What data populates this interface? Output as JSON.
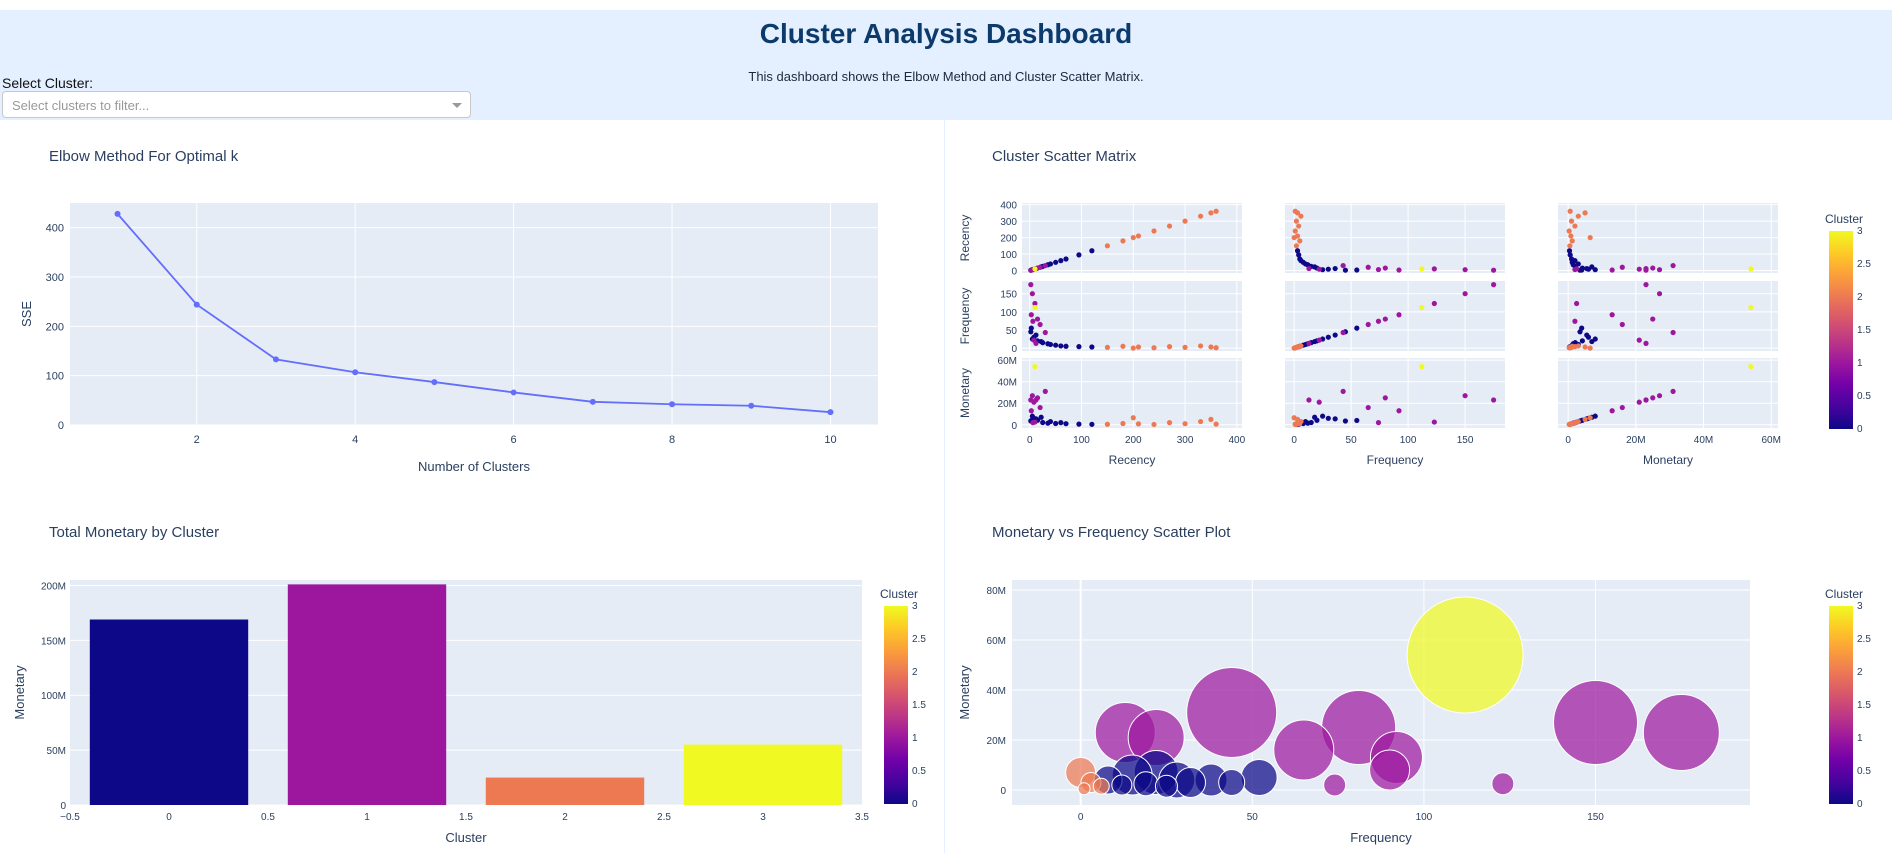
{
  "header": {
    "title": "Cluster Analysis Dashboard",
    "subtitle": "This dashboard shows the Elbow Method and Cluster Scatter Matrix."
  },
  "filter": {
    "label": "Select Cluster:",
    "placeholder": "Select clusters to filter..."
  },
  "colors": {
    "header_bg": "#e4efff",
    "plot_bg": "#e5ecf6",
    "line": "#636efa",
    "cluster_0": "#0d0887",
    "cluster_1": "#9c179e",
    "cluster_2": "#ed7953",
    "cluster_3": "#f0f921"
  },
  "chart_data": [
    {
      "type": "line",
      "title": "Elbow Method For Optimal k",
      "xlabel": "Number of Clusters",
      "ylabel": "SSE",
      "x": [
        1,
        2,
        3,
        4,
        5,
        6,
        7,
        8,
        9,
        10
      ],
      "y": [
        428,
        244,
        133,
        107,
        87,
        66,
        47,
        42,
        39,
        26
      ],
      "xticks": [
        2,
        4,
        6,
        8,
        10
      ],
      "yticks": [
        0,
        100,
        200,
        300,
        400
      ],
      "xlim": [
        0.4,
        10.6
      ],
      "ylim": [
        0,
        450
      ]
    },
    {
      "type": "scatter",
      "title": "Cluster Scatter Matrix",
      "dimensions": [
        "Recency",
        "Frequency",
        "Monetary"
      ],
      "tick_labels": {
        "Recency": [
          "0",
          "100",
          "200",
          "300",
          "400"
        ],
        "Frequency": [
          "0",
          "50",
          "100",
          "150"
        ],
        "Frequency_y": [
          "0",
          "50",
          "100",
          "150"
        ],
        "Monetary": [
          "0",
          "20M",
          "40M",
          "60M"
        ],
        "Recency_y": [
          "0",
          "100",
          "200",
          "300",
          "400"
        ]
      },
      "colorbar": {
        "title": "Cluster",
        "ticks": [
          "0",
          "0.5",
          "1",
          "1.5",
          "2",
          "2.5",
          "3"
        ]
      },
      "points": [
        {
          "cluster": 0,
          "Recency": 2,
          "Frequency": 45,
          "Monetary": 3.5
        },
        {
          "cluster": 0,
          "Recency": 8,
          "Frequency": 30,
          "Monetary": 6.0
        },
        {
          "cluster": 0,
          "Recency": 15,
          "Frequency": 20,
          "Monetary": 4.2
        },
        {
          "cluster": 0,
          "Recency": 25,
          "Frequency": 15,
          "Monetary": 2.1
        },
        {
          "cluster": 0,
          "Recency": 35,
          "Frequency": 12,
          "Monetary": 1.5
        },
        {
          "cluster": 0,
          "Recency": 50,
          "Frequency": 8,
          "Monetary": 1.2
        },
        {
          "cluster": 0,
          "Recency": 70,
          "Frequency": 5,
          "Monetary": 1.0
        },
        {
          "cluster": 0,
          "Recency": 95,
          "Frequency": 4,
          "Monetary": 0.6
        },
        {
          "cluster": 0,
          "Recency": 120,
          "Frequency": 3,
          "Monetary": 0.4
        },
        {
          "cluster": 0,
          "Recency": 5,
          "Frequency": 25,
          "Monetary": 8.0
        },
        {
          "cluster": 0,
          "Recency": 12,
          "Frequency": 36,
          "Monetary": 5.5
        },
        {
          "cluster": 0,
          "Recency": 40,
          "Frequency": 10,
          "Monetary": 3.0
        },
        {
          "cluster": 0,
          "Recency": 60,
          "Frequency": 6,
          "Monetary": 2.0
        },
        {
          "cluster": 0,
          "Recency": 22,
          "Frequency": 18,
          "Monetary": 7.0
        },
        {
          "cluster": 0,
          "Recency": 3,
          "Frequency": 55,
          "Monetary": 4.0
        },
        {
          "cluster": 1,
          "Recency": 2,
          "Frequency": 175,
          "Monetary": 23
        },
        {
          "cluster": 1,
          "Recency": 5,
          "Frequency": 150,
          "Monetary": 27
        },
        {
          "cluster": 1,
          "Recency": 10,
          "Frequency": 123,
          "Monetary": 2.5
        },
        {
          "cluster": 1,
          "Recency": 3,
          "Frequency": 92,
          "Monetary": 13
        },
        {
          "cluster": 1,
          "Recency": 15,
          "Frequency": 80,
          "Monetary": 25
        },
        {
          "cluster": 1,
          "Recency": 20,
          "Frequency": 65,
          "Monetary": 16
        },
        {
          "cluster": 1,
          "Recency": 30,
          "Frequency": 43,
          "Monetary": 31
        },
        {
          "cluster": 1,
          "Recency": 8,
          "Frequency": 22,
          "Monetary": 21
        },
        {
          "cluster": 1,
          "Recency": 12,
          "Frequency": 13,
          "Monetary": 23
        },
        {
          "cluster": 1,
          "Recency": 6,
          "Frequency": 74,
          "Monetary": 2.0
        },
        {
          "cluster": 2,
          "Recency": 150,
          "Frequency": 2,
          "Monetary": 0.5
        },
        {
          "cluster": 2,
          "Recency": 180,
          "Frequency": 5,
          "Monetary": 1.2
        },
        {
          "cluster": 2,
          "Recency": 210,
          "Frequency": 3,
          "Monetary": 0.8
        },
        {
          "cluster": 2,
          "Recency": 240,
          "Frequency": 1,
          "Monetary": 0.3
        },
        {
          "cluster": 2,
          "Recency": 270,
          "Frequency": 4,
          "Monetary": 2.0
        },
        {
          "cluster": 2,
          "Recency": 300,
          "Frequency": 2,
          "Monetary": 1.0
        },
        {
          "cluster": 2,
          "Recency": 330,
          "Frequency": 6,
          "Monetary": 3.0
        },
        {
          "cluster": 2,
          "Recency": 350,
          "Frequency": 3,
          "Monetary": 5.0
        },
        {
          "cluster": 2,
          "Recency": 360,
          "Frequency": 1,
          "Monetary": 0.6
        },
        {
          "cluster": 2,
          "Recency": 200,
          "Frequency": 0,
          "Monetary": 6.5
        },
        {
          "cluster": 3,
          "Recency": 10,
          "Frequency": 112,
          "Monetary": 54
        }
      ]
    },
    {
      "type": "bar",
      "title": "Total Monetary by Cluster",
      "xlabel": "Cluster",
      "ylabel": "Monetary",
      "categories": [
        0,
        1,
        2,
        3
      ],
      "values": [
        169,
        201,
        25,
        55
      ],
      "xticks": [
        "−0.5",
        "0",
        "0.5",
        "1",
        "1.5",
        "2",
        "2.5",
        "3",
        "3.5"
      ],
      "yticks": [
        "0",
        "50M",
        "100M",
        "150M",
        "200M"
      ],
      "xlim": [
        -0.5,
        3.5
      ],
      "ylim": [
        0,
        205
      ],
      "colorbar": {
        "title": "Cluster",
        "ticks": [
          "0",
          "0.5",
          "1",
          "1.5",
          "2",
          "2.5",
          "3"
        ]
      }
    },
    {
      "type": "scatter",
      "title": "Monetary vs Frequency Scatter Plot",
      "xlabel": "Frequency",
      "ylabel": "Monetary",
      "xticks": [
        "0",
        "50",
        "100",
        "150"
      ],
      "yticks": [
        "0",
        "20M",
        "40M",
        "60M",
        "80M"
      ],
      "xlim": [
        -20,
        195
      ],
      "ylim": [
        -6,
        84
      ],
      "colorbar": {
        "title": "Cluster",
        "ticks": [
          "0",
          "0.5",
          "1",
          "1.5",
          "2",
          "2.5",
          "3"
        ]
      },
      "points": [
        {
          "cluster": 2,
          "x": 0,
          "y": 7,
          "r": 15
        },
        {
          "cluster": 2,
          "x": 3,
          "y": 3,
          "r": 10
        },
        {
          "cluster": 2,
          "x": 6,
          "y": 1.5,
          "r": 8
        },
        {
          "cluster": 2,
          "x": 1,
          "y": 0.5,
          "r": 6
        },
        {
          "cluster": 0,
          "x": 8,
          "y": 4,
          "r": 14
        },
        {
          "cluster": 0,
          "x": 15,
          "y": 6,
          "r": 20
        },
        {
          "cluster": 0,
          "x": 22,
          "y": 7,
          "r": 22
        },
        {
          "cluster": 0,
          "x": 28,
          "y": 4,
          "r": 18
        },
        {
          "cluster": 0,
          "x": 32,
          "y": 3,
          "r": 15
        },
        {
          "cluster": 0,
          "x": 38,
          "y": 4,
          "r": 16
        },
        {
          "cluster": 0,
          "x": 44,
          "y": 3,
          "r": 13
        },
        {
          "cluster": 0,
          "x": 52,
          "y": 5,
          "r": 18
        },
        {
          "cluster": 0,
          "x": 12,
          "y": 2,
          "r": 10
        },
        {
          "cluster": 0,
          "x": 19,
          "y": 2.5,
          "r": 12
        },
        {
          "cluster": 0,
          "x": 25,
          "y": 1.5,
          "r": 11
        },
        {
          "cluster": 1,
          "x": 13,
          "y": 23,
          "r": 30
        },
        {
          "cluster": 1,
          "x": 22,
          "y": 21,
          "r": 28
        },
        {
          "cluster": 1,
          "x": 44,
          "y": 31,
          "r": 45
        },
        {
          "cluster": 1,
          "x": 65,
          "y": 16,
          "r": 30
        },
        {
          "cluster": 1,
          "x": 81,
          "y": 25,
          "r": 37
        },
        {
          "cluster": 1,
          "x": 92,
          "y": 13,
          "r": 26
        },
        {
          "cluster": 1,
          "x": 90,
          "y": 8,
          "r": 20
        },
        {
          "cluster": 1,
          "x": 74,
          "y": 2,
          "r": 11
        },
        {
          "cluster": 1,
          "x": 123,
          "y": 2.5,
          "r": 11
        },
        {
          "cluster": 1,
          "x": 150,
          "y": 27,
          "r": 42
        },
        {
          "cluster": 1,
          "x": 175,
          "y": 23,
          "r": 38
        },
        {
          "cluster": 3,
          "x": 112,
          "y": 54,
          "r": 58
        }
      ]
    }
  ]
}
